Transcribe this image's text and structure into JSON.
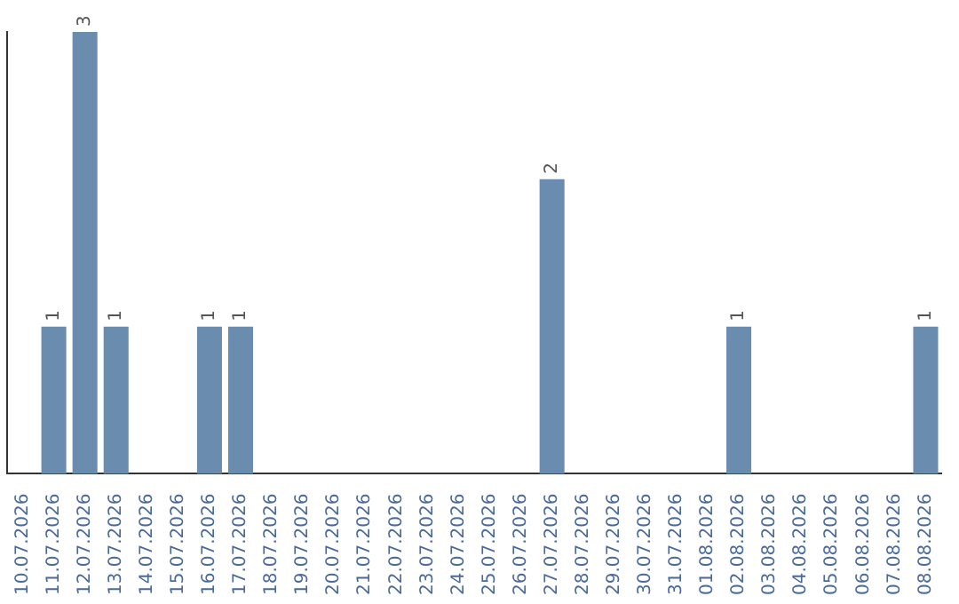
{
  "chart_data": {
    "type": "bar",
    "categories": [
      "10.07.2026",
      "11.07.2026",
      "12.07.2026",
      "13.07.2026",
      "14.07.2026",
      "15.07.2026",
      "16.07.2026",
      "17.07.2026",
      "18.07.2026",
      "19.07.2026",
      "20.07.2026",
      "21.07.2026",
      "22.07.2026",
      "23.07.2026",
      "24.07.2026",
      "25.07.2026",
      "26.07.2026",
      "27.07.2026",
      "28.07.2026",
      "29.07.2026",
      "30.07.2026",
      "31.07.2026",
      "01.08.2026",
      "02.08.2026",
      "03.08.2026",
      "04.08.2026",
      "05.08.2026",
      "06.08.2026",
      "07.08.2026",
      "08.08.2026"
    ],
    "values": [
      0,
      1,
      3,
      1,
      0,
      0,
      1,
      1,
      0,
      0,
      0,
      0,
      0,
      0,
      0,
      0,
      0,
      2,
      0,
      0,
      0,
      0,
      0,
      1,
      0,
      0,
      0,
      0,
      0,
      1
    ],
    "value_labels": [
      null,
      "1",
      "3",
      "1",
      null,
      null,
      "1",
      "1",
      null,
      null,
      null,
      null,
      null,
      null,
      null,
      null,
      null,
      "2",
      null,
      null,
      null,
      null,
      null,
      "1",
      null,
      null,
      null,
      null,
      null,
      "1"
    ],
    "color": "#6a8caf",
    "grid": false,
    "legend": false,
    "tick_labels": "x"
  }
}
